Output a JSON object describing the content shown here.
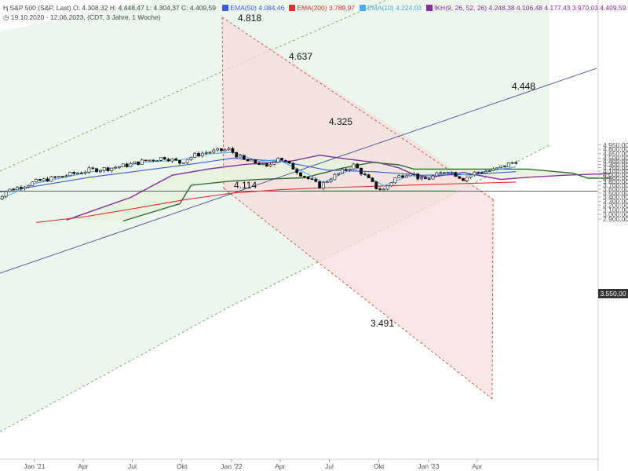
{
  "header": {
    "title": "S&P 500 (S&P, Last)",
    "ohlc": "O: 4.308,32  H: 4.448,47  L: 4.304,37  C: 4.409,59",
    "period": "19.10.2020 - 12.06.2023, (CDT, 3 Jahre, 1 Woche)",
    "indicators": [
      {
        "label": "EMA(50)",
        "value": "4.084,46",
        "color": "#3b5bdb"
      },
      {
        "label": "EMA(200)",
        "value": "3.789,97",
        "color": "#e03131"
      },
      {
        "label": "EMA(10)",
        "value": "4.224,03",
        "color": "#4dabf7"
      },
      {
        "label": "IKH(9, 26, 52, 26)",
        "value": "4.248,38  4.106,48  4.177,43  3.970,03  4.409,59",
        "color": "#862e9c"
      }
    ]
  },
  "current_price": "3.550,00",
  "chart_data": {
    "type": "candlestick",
    "x_tick_labels": [
      "Jan '21",
      "Apr",
      "Jul",
      "Okt",
      "Jan '22",
      "Apr",
      "Jul",
      "Okt",
      "Jan '23",
      "Apr"
    ],
    "y_tick_labels": [
      "2.900,00",
      "3.000,00",
      "3.100,00",
      "3.200,00",
      "3.300,00",
      "3.400,00",
      "3.500,00",
      "3.550,00",
      "3.600,00",
      "3.700,00",
      "3.800,00",
      "3.900,00",
      "4.000,00",
      "4.100,00",
      "4.200,00",
      "4.300,00",
      "4.400,00",
      "4.500,00",
      "4.650,00",
      "4.800,00",
      "4.950,00"
    ],
    "ylim": [
      2900,
      4950
    ],
    "annotations": [
      {
        "text": "4.818",
        "date": "2022-01-03",
        "price": 4818
      },
      {
        "text": "4.637",
        "date": "2022-03-28",
        "price": 4637
      },
      {
        "text": "4.325",
        "date": "2022-08-15",
        "price": 4325
      },
      {
        "text": "4.114",
        "date": "2022-01-03",
        "price": 4114
      },
      {
        "text": "3.491",
        "date": "2022-10-10",
        "price": 3491
      },
      {
        "text": "4.448",
        "date": "2023-06-12",
        "price": 4448
      }
    ],
    "horizontal_line": 3550,
    "support_zone": [
      3535,
      3575
    ],
    "close_anchors": [
      [
        "2020-10-19",
        3300
      ],
      [
        "2020-11-09",
        3550
      ],
      [
        "2021-01-04",
        3800
      ],
      [
        "2021-02-15",
        3930
      ],
      [
        "2021-04-12",
        4130
      ],
      [
        "2021-05-17",
        4180
      ],
      [
        "2021-06-21",
        4280
      ],
      [
        "2021-07-26",
        4420
      ],
      [
        "2021-08-30",
        4530
      ],
      [
        "2021-09-27",
        4360
      ],
      [
        "2021-10-25",
        4600
      ],
      [
        "2021-11-15",
        4700
      ],
      [
        "2021-12-27",
        4790
      ],
      [
        "2022-01-24",
        4430
      ],
      [
        "2022-02-21",
        4340
      ],
      [
        "2022-03-07",
        4200
      ],
      [
        "2022-03-28",
        4545
      ],
      [
        "2022-05-09",
        4020
      ],
      [
        "2022-06-13",
        3675
      ],
      [
        "2022-07-04",
        3900
      ],
      [
        "2022-08-15",
        4280
      ],
      [
        "2022-09-26",
        3640
      ],
      [
        "2022-10-10",
        3585
      ],
      [
        "2022-10-31",
        3900
      ],
      [
        "2022-11-28",
        4080
      ],
      [
        "2022-12-19",
        3840
      ],
      [
        "2023-01-02",
        3900
      ],
      [
        "2023-02-06",
        4120
      ],
      [
        "2023-03-06",
        3880
      ],
      [
        "2023-03-27",
        4050
      ],
      [
        "2023-05-01",
        4130
      ],
      [
        "2023-06-12",
        4409
      ]
    ],
    "ema10_anchors": [
      [
        "2020-10-19",
        3300
      ],
      [
        "2021-01-04",
        3760
      ],
      [
        "2021-04-12",
        4070
      ],
      [
        "2021-07-26",
        4380
      ],
      [
        "2021-09-27",
        4440
      ],
      [
        "2021-11-15",
        4640
      ],
      [
        "2022-01-03",
        4700
      ],
      [
        "2022-02-21",
        4400
      ],
      [
        "2022-03-28",
        4450
      ],
      [
        "2022-05-09",
        4120
      ],
      [
        "2022-06-20",
        3780
      ],
      [
        "2022-08-15",
        4180
      ],
      [
        "2022-10-10",
        3690
      ],
      [
        "2022-11-28",
        3980
      ],
      [
        "2022-12-26",
        3900
      ],
      [
        "2023-02-06",
        4070
      ],
      [
        "2023-03-13",
        3980
      ],
      [
        "2023-04-17",
        4100
      ],
      [
        "2023-06-12",
        4224
      ]
    ],
    "ema50_anchors": [
      [
        "2020-10-19",
        3500
      ],
      [
        "2021-04-12",
        3920
      ],
      [
        "2021-10-04",
        4280
      ],
      [
        "2022-01-03",
        4500
      ],
      [
        "2022-04-04",
        4400
      ],
      [
        "2022-06-27",
        4130
      ],
      [
        "2022-09-26",
        4080
      ],
      [
        "2022-12-19",
        3980
      ],
      [
        "2023-03-13",
        4000
      ],
      [
        "2023-06-12",
        4084
      ]
    ],
    "ema200_anchors": [
      [
        "2021-01-04",
        2830
      ],
      [
        "2021-04-05",
        2950
      ],
      [
        "2021-07-05",
        3130
      ],
      [
        "2021-10-04",
        3330
      ],
      [
        "2022-01-03",
        3500
      ],
      [
        "2022-04-04",
        3590
      ],
      [
        "2022-07-04",
        3640
      ],
      [
        "2022-10-03",
        3680
      ],
      [
        "2023-01-02",
        3720
      ],
      [
        "2023-04-03",
        3760
      ],
      [
        "2023-06-12",
        3790
      ]
    ],
    "ikh_span_a": [
      [
        "2021-03-01",
        2880
      ],
      [
        "2021-06-28",
        3390
      ],
      [
        "2021-09-13",
        3980
      ],
      [
        "2021-11-22",
        4170
      ],
      [
        "2022-01-24",
        4300
      ],
      [
        "2022-04-25",
        4420
      ],
      [
        "2022-06-13",
        4600
      ],
      [
        "2022-08-01",
        4480
      ],
      [
        "2022-10-03",
        4350
      ],
      [
        "2022-11-07",
        4200
      ],
      [
        "2022-12-05",
        4000
      ],
      [
        "2023-01-02",
        3920
      ],
      [
        "2023-03-06",
        4060
      ],
      [
        "2023-04-17",
        3940
      ],
      [
        "2023-05-15",
        3860
      ],
      [
        "2023-07-03",
        3920
      ],
      [
        "2023-09-11",
        3980
      ],
      [
        "2023-12-04",
        4030
      ]
    ],
    "ikh_span_b": [
      [
        "2021-06-14",
        2860
      ],
      [
        "2021-09-27",
        3240
      ],
      [
        "2021-10-18",
        3700
      ],
      [
        "2021-12-27",
        3810
      ],
      [
        "2022-02-21",
        3860
      ],
      [
        "2022-05-16",
        3910
      ],
      [
        "2022-07-25",
        4190
      ],
      [
        "2022-09-19",
        4370
      ],
      [
        "2022-11-07",
        4290
      ],
      [
        "2022-12-05",
        4160
      ],
      [
        "2023-04-17",
        4160
      ],
      [
        "2023-07-03",
        4160
      ],
      [
        "2023-09-25",
        4040
      ],
      [
        "2023-10-23",
        3895
      ],
      [
        "2023-12-04",
        3895
      ]
    ]
  }
}
